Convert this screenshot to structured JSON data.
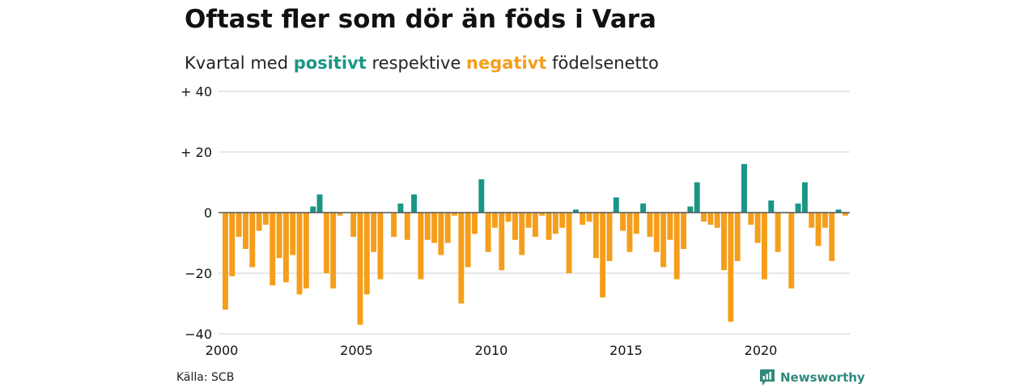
{
  "title": "Oftast fler som dör än föds i Vara",
  "subtitle": {
    "prefix": "Kvartal med ",
    "positive_word": "positivt",
    "middle": " respektive ",
    "negative_word": "negativt",
    "suffix": " födelsenetto"
  },
  "source": "Källa: SCB",
  "brand": {
    "name": "Newsworthy",
    "icon": "newsworthy-logo-icon"
  },
  "colors": {
    "positive": "#1a9685",
    "negative": "#f59e1b",
    "grid": "#e0e0e0",
    "zero": "#555555"
  },
  "chart_data": {
    "type": "bar",
    "title": "Oftast fler som dör än föds i Vara",
    "subtitle": "Kvartal med positivt respektive negativt födelsenetto",
    "xlabel": "",
    "ylabel": "",
    "ylim": [
      -40,
      40
    ],
    "grid": true,
    "y_ticks": [
      40,
      20,
      0,
      -20,
      -40
    ],
    "y_tick_labels": [
      "+ 40",
      "+ 20",
      "0",
      "−20",
      "−40"
    ],
    "x_ticks": [
      2000,
      2005,
      2010,
      2015,
      2020
    ],
    "x_tick_labels": [
      "2000",
      "2005",
      "2010",
      "2015",
      "2020"
    ],
    "x_start": 2000,
    "x_end": 2023.5,
    "periods_per_year": 4,
    "categories": [
      "2000 Q1",
      "2000 Q2",
      "2000 Q3",
      "2000 Q4",
      "2001 Q1",
      "2001 Q2",
      "2001 Q3",
      "2001 Q4",
      "2002 Q1",
      "2002 Q2",
      "2002 Q3",
      "2002 Q4",
      "2003 Q1",
      "2003 Q2",
      "2003 Q3",
      "2003 Q4",
      "2004 Q1",
      "2004 Q2",
      "2004 Q3",
      "2004 Q4",
      "2005 Q1",
      "2005 Q2",
      "2005 Q3",
      "2005 Q4",
      "2006 Q1",
      "2006 Q2",
      "2006 Q3",
      "2006 Q4",
      "2007 Q1",
      "2007 Q2",
      "2007 Q3",
      "2007 Q4",
      "2008 Q1",
      "2008 Q2",
      "2008 Q3",
      "2008 Q4",
      "2009 Q1",
      "2009 Q2",
      "2009 Q3",
      "2009 Q4",
      "2010 Q1",
      "2010 Q2",
      "2010 Q3",
      "2010 Q4",
      "2011 Q1",
      "2011 Q2",
      "2011 Q3",
      "2011 Q4",
      "2012 Q1",
      "2012 Q2",
      "2012 Q3",
      "2012 Q4",
      "2013 Q1",
      "2013 Q2",
      "2013 Q3",
      "2013 Q4",
      "2014 Q1",
      "2014 Q2",
      "2014 Q3",
      "2014 Q4",
      "2015 Q1",
      "2015 Q2",
      "2015 Q3",
      "2015 Q4",
      "2016 Q1",
      "2016 Q2",
      "2016 Q3",
      "2016 Q4",
      "2017 Q1",
      "2017 Q2",
      "2017 Q3",
      "2017 Q4",
      "2018 Q1",
      "2018 Q2",
      "2018 Q3",
      "2018 Q4",
      "2019 Q1",
      "2019 Q2",
      "2019 Q3",
      "2019 Q4",
      "2020 Q1",
      "2020 Q2",
      "2020 Q3",
      "2020 Q4",
      "2021 Q1",
      "2021 Q2",
      "2021 Q3",
      "2021 Q4",
      "2022 Q1",
      "2022 Q2",
      "2022 Q3",
      "2022 Q4",
      "2023 Q1"
    ],
    "values": [
      -32,
      -21,
      -8,
      -12,
      -18,
      -6,
      -4,
      -24,
      -15,
      -23,
      -14,
      -27,
      -25,
      2,
      6,
      -20,
      -25,
      -1,
      0,
      -8,
      -37,
      -27,
      -13,
      -22,
      0,
      -8,
      3,
      -9,
      6,
      -22,
      -9,
      -10,
      -14,
      -10,
      -1,
      -30,
      -18,
      -7,
      11,
      -13,
      -5,
      -19,
      -3,
      -9,
      -14,
      -5,
      -8,
      -1,
      -9,
      -7,
      -5,
      -20,
      1,
      -4,
      -3,
      -15,
      -28,
      -16,
      5,
      -6,
      -13,
      -7,
      3,
      -8,
      -13,
      -18,
      -9,
      -22,
      -12,
      2,
      10,
      -3,
      -4,
      -5,
      -19,
      -36,
      -16,
      16,
      -4,
      -10,
      -22,
      4,
      -13,
      0,
      -25,
      3,
      10,
      -5,
      -11,
      -5,
      -16,
      1,
      -1
    ]
  }
}
